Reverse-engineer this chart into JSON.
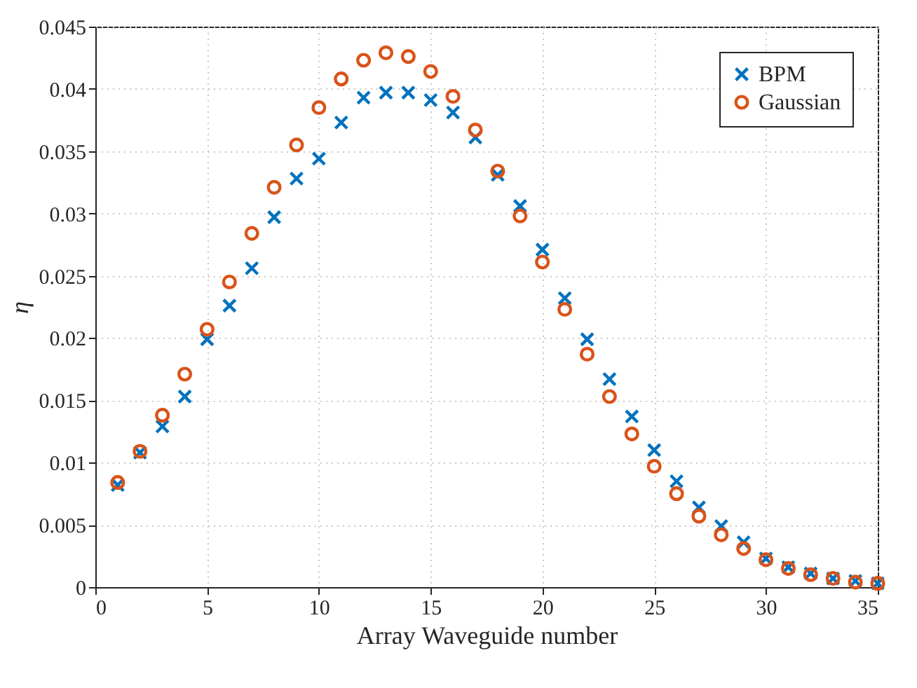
{
  "chart_data": {
    "type": "scatter",
    "xlabel": "Array Waveguide number",
    "ylabel": "η",
    "x": [
      1,
      2,
      3,
      4,
      5,
      6,
      7,
      8,
      9,
      10,
      11,
      12,
      13,
      14,
      15,
      16,
      17,
      18,
      19,
      20,
      21,
      22,
      23,
      24,
      25,
      26,
      27,
      28,
      29,
      30,
      31,
      32,
      33,
      34,
      35
    ],
    "series": [
      {
        "name": "BPM",
        "color": "#0072bd",
        "marker": "cross",
        "values": [
          0.0082,
          0.0108,
          0.0129,
          0.0153,
          0.0199,
          0.0226,
          0.0256,
          0.0297,
          0.0328,
          0.0344,
          0.0373,
          0.0393,
          0.0397,
          0.0397,
          0.0391,
          0.0381,
          0.0361,
          0.0331,
          0.0306,
          0.0271,
          0.0232,
          0.0199,
          0.0167,
          0.0137,
          0.011,
          0.0085,
          0.0064,
          0.0049,
          0.0036,
          0.0023,
          0.0016,
          0.0011,
          0.0007,
          0.0005,
          0.0003
        ]
      },
      {
        "name": "Gaussian",
        "color": "#d95319",
        "marker": "circle",
        "values": [
          0.0084,
          0.0109,
          0.0138,
          0.0171,
          0.0207,
          0.0245,
          0.0284,
          0.0321,
          0.0355,
          0.0385,
          0.0408,
          0.0423,
          0.0429,
          0.0426,
          0.0414,
          0.0394,
          0.0367,
          0.0334,
          0.0298,
          0.0261,
          0.0223,
          0.0187,
          0.0153,
          0.0123,
          0.0097,
          0.0075,
          0.0057,
          0.0042,
          0.0031,
          0.0022,
          0.0015,
          0.001,
          0.0007,
          0.0004,
          0.0003
        ]
      }
    ],
    "xlim": [
      0,
      35
    ],
    "xticks": [
      0,
      5,
      10,
      15,
      20,
      25,
      30,
      35
    ],
    "ylim": [
      0,
      0.045
    ],
    "yticks": [
      0,
      0.005,
      0.01,
      0.015,
      0.02,
      0.025,
      0.03,
      0.035,
      0.04,
      0.045
    ],
    "grid": true,
    "legend": "top right"
  }
}
